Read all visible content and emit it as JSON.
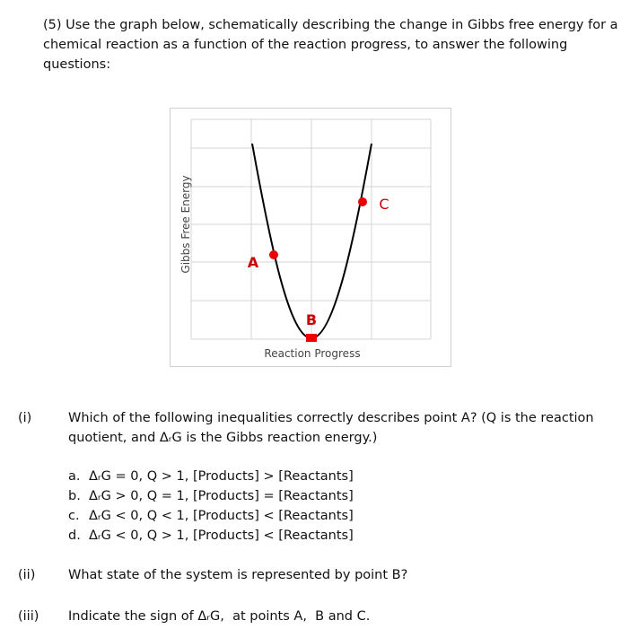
{
  "header": {
    "title": "(5) Use the graph below, schematically describing the change in Gibbs free energy for a chemical reaction as a function of the reaction progress, to answer the following questions:"
  },
  "graph": {
    "y_axis_label": "Gibbs Free Energy",
    "x_axis_label": "Reaction Progress",
    "points": [
      {
        "label": "A"
      },
      {
        "label": "B"
      },
      {
        "label": "C"
      }
    ]
  },
  "questions": [
    {
      "number": "(i)",
      "text": "Which of the following inequalities correctly describes point A? (Q is the reaction quotient, and ΔᵣG is the Gibbs reaction energy.)",
      "options": [
        {
          "letter": "a.",
          "text": "ΔᵣG = 0, Q > 1, [Products] > [Reactants]"
        },
        {
          "letter": "b.",
          "text": "ΔᵣG > 0, Q = 1, [Products] = [Reactants]"
        },
        {
          "letter": "c.",
          "text": "ΔᵣG < 0, Q < 1, [Products] < [Reactants]"
        },
        {
          "letter": "d.",
          "text": "ΔᵣG < 0, Q > 1, [Products] < [Reactants]"
        }
      ]
    },
    {
      "number": "(ii)",
      "text": "What state of the system is represented by point B?"
    },
    {
      "number": "(iii)",
      "text": "Indicate the sign of ΔᵣG,  at points A,  B and C."
    }
  ]
}
